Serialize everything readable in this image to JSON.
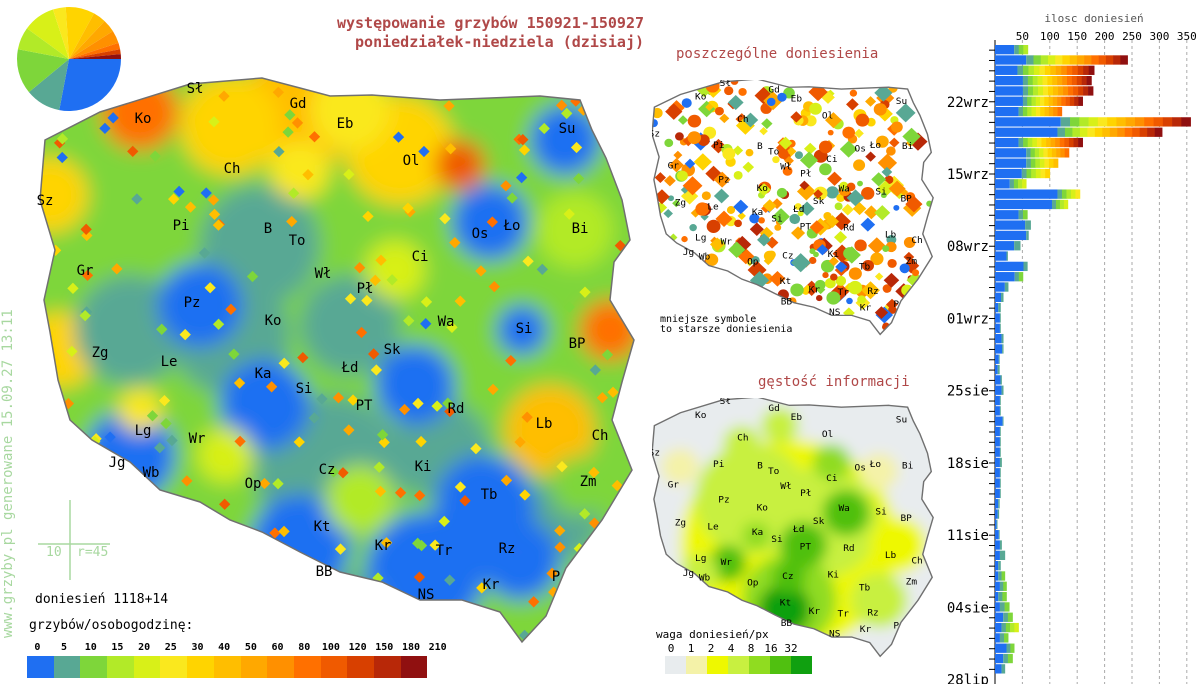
{
  "header": {
    "title_line1": "występowanie grzybów 150921-150927",
    "title_line2": "poniedziałek-niedziela (dzisiaj)"
  },
  "side_text": "www.grzyby.pl generowane 15.09.27 13:11",
  "scale_marker": {
    "left": "10",
    "right": "r=45"
  },
  "reports_count": "doniesień 1118+14",
  "legend": {
    "title": "grzybów/osobogodzinę:",
    "labels": [
      "0",
      "5",
      "10",
      "15",
      "20",
      "25",
      "30",
      "40",
      "50",
      "60",
      "80",
      "100",
      "120",
      "150",
      "180",
      "210"
    ],
    "colors": [
      "#1f6ff2",
      "#58a894",
      "#7ed63a",
      "#b2ea28",
      "#d8f018",
      "#fae81e",
      "#ffd400",
      "#ffbe00",
      "#ffa800",
      "#ff9000",
      "#ff7000",
      "#f05a00",
      "#d84000",
      "#b82808",
      "#901010"
    ]
  },
  "pie": {
    "shares": [
      28,
      11,
      14,
      7,
      10,
      4,
      9,
      4,
      4,
      4,
      2,
      1.5,
      1.5
    ],
    "colors": [
      "#1f6ff2",
      "#58a894",
      "#7ed63a",
      "#b2ea28",
      "#d8f018",
      "#fae81e",
      "#ffd400",
      "#ffbe00",
      "#ffa800",
      "#ff9000",
      "#ff7000",
      "#d84000",
      "#901010"
    ]
  },
  "regions": [
    "Sł",
    "Ko",
    "Gd",
    "Eb",
    "Ol",
    "Su",
    "Ch",
    "Sz",
    "Pi",
    "B",
    "To",
    "Os",
    "Ło",
    "Bi",
    "Gr",
    "Ci",
    "Wł",
    "Pł",
    "Pz",
    "Ko",
    "Wa",
    "Si",
    "BP",
    "Zg",
    "Le",
    "Sk",
    "Łd",
    "Ka",
    "Si",
    "PT",
    "Rd",
    "Lg",
    "Wr",
    "Lb",
    "Ch",
    "Jg",
    "Wb",
    "Ki",
    "Cz",
    "Zm",
    "Op",
    "Tb",
    "Kt",
    "Kr",
    "Tr",
    "Rz",
    "P",
    "Kr",
    "BB",
    "NS"
  ],
  "individual_map": {
    "title": "poszczególne doniesienia",
    "note": "mniejsze symbole\nto starsze doniesienia"
  },
  "density_map": {
    "title": "gęstość informacji",
    "legend_title": "waga doniesień/px",
    "labels": [
      "0",
      "1",
      "2",
      "4",
      "8",
      "16",
      "32"
    ],
    "colors": [
      "#e8ecee",
      "#f4f2a8",
      "#eef800",
      "#c8f040",
      "#90dc20",
      "#50c010",
      "#10a010"
    ]
  },
  "chart_data": {
    "type": "bar",
    "orientation": "horizontal-stacked",
    "title": "ilosc doniesień",
    "xticks": [
      50,
      100,
      150,
      200,
      250,
      300,
      350
    ],
    "xlim": [
      0,
      370
    ],
    "grid": true,
    "ytick_labels": [
      "22wrz",
      "15wrz",
      "08wrz",
      "01wrz",
      "25sie",
      "18sie",
      "11sie",
      "04sie",
      "28lip"
    ],
    "bars_newest_first": [
      {
        "total": 60,
        "zero": 35
      },
      {
        "total": 242,
        "zero": 57
      },
      {
        "total": 181,
        "zero": 41
      },
      {
        "total": 176,
        "zero": 51
      },
      {
        "total": 179,
        "zero": 51
      },
      {
        "total": 160,
        "zero": 51
      },
      {
        "total": 122,
        "zero": 43
      },
      {
        "total": 357,
        "zero": 120
      },
      {
        "total": 305,
        "zero": 114
      },
      {
        "total": 160,
        "zero": 43
      },
      {
        "total": 135,
        "zero": 57
      },
      {
        "total": 115,
        "zero": 57
      },
      {
        "total": 100,
        "zero": 49
      },
      {
        "total": 57,
        "zero": 27
      },
      {
        "total": 155,
        "zero": 114
      },
      {
        "total": 133,
        "zero": 104
      },
      {
        "total": 59,
        "zero": 43
      },
      {
        "total": 65,
        "zero": 55
      },
      {
        "total": 61,
        "zero": 57
      },
      {
        "total": 46,
        "zero": 35
      },
      {
        "total": 23,
        "zero": 21
      },
      {
        "total": 59,
        "zero": 52
      },
      {
        "total": 51,
        "zero": 36
      },
      {
        "total": 24,
        "zero": 18
      },
      {
        "total": 15,
        "zero": 11
      },
      {
        "total": 10,
        "zero": 6
      },
      {
        "total": 10,
        "zero": 9
      },
      {
        "total": 10,
        "zero": 9
      },
      {
        "total": 15,
        "zero": 12
      },
      {
        "total": 15,
        "zero": 13
      },
      {
        "total": 8,
        "zero": 7
      },
      {
        "total": 8,
        "zero": 5
      },
      {
        "total": 12,
        "zero": 10
      },
      {
        "total": 15,
        "zero": 12
      },
      {
        "total": 10,
        "zero": 9
      },
      {
        "total": 10,
        "zero": 9
      },
      {
        "total": 15,
        "zero": 14
      },
      {
        "total": 10,
        "zero": 9
      },
      {
        "total": 10,
        "zero": 9
      },
      {
        "total": 10,
        "zero": 9
      },
      {
        "total": 12,
        "zero": 9
      },
      {
        "total": 10,
        "zero": 9
      },
      {
        "total": 10,
        "zero": 9
      },
      {
        "total": 10,
        "zero": 9
      },
      {
        "total": 8,
        "zero": 6
      },
      {
        "total": 7,
        "zero": 5
      },
      {
        "total": 4,
        "zero": 3
      },
      {
        "total": 8,
        "zero": 7
      },
      {
        "total": 12,
        "zero": 9
      },
      {
        "total": 18,
        "zero": 9
      },
      {
        "total": 10,
        "zero": 6
      },
      {
        "total": 18,
        "zero": 6
      },
      {
        "total": 21,
        "zero": 9
      },
      {
        "total": 21,
        "zero": 6
      },
      {
        "total": 26,
        "zero": 9
      },
      {
        "total": 32,
        "zero": 15
      },
      {
        "total": 43,
        "zero": 12
      },
      {
        "total": 24,
        "zero": 9
      },
      {
        "total": 35,
        "zero": 21
      },
      {
        "total": 32,
        "zero": 15
      },
      {
        "total": 18,
        "zero": 12
      }
    ]
  }
}
